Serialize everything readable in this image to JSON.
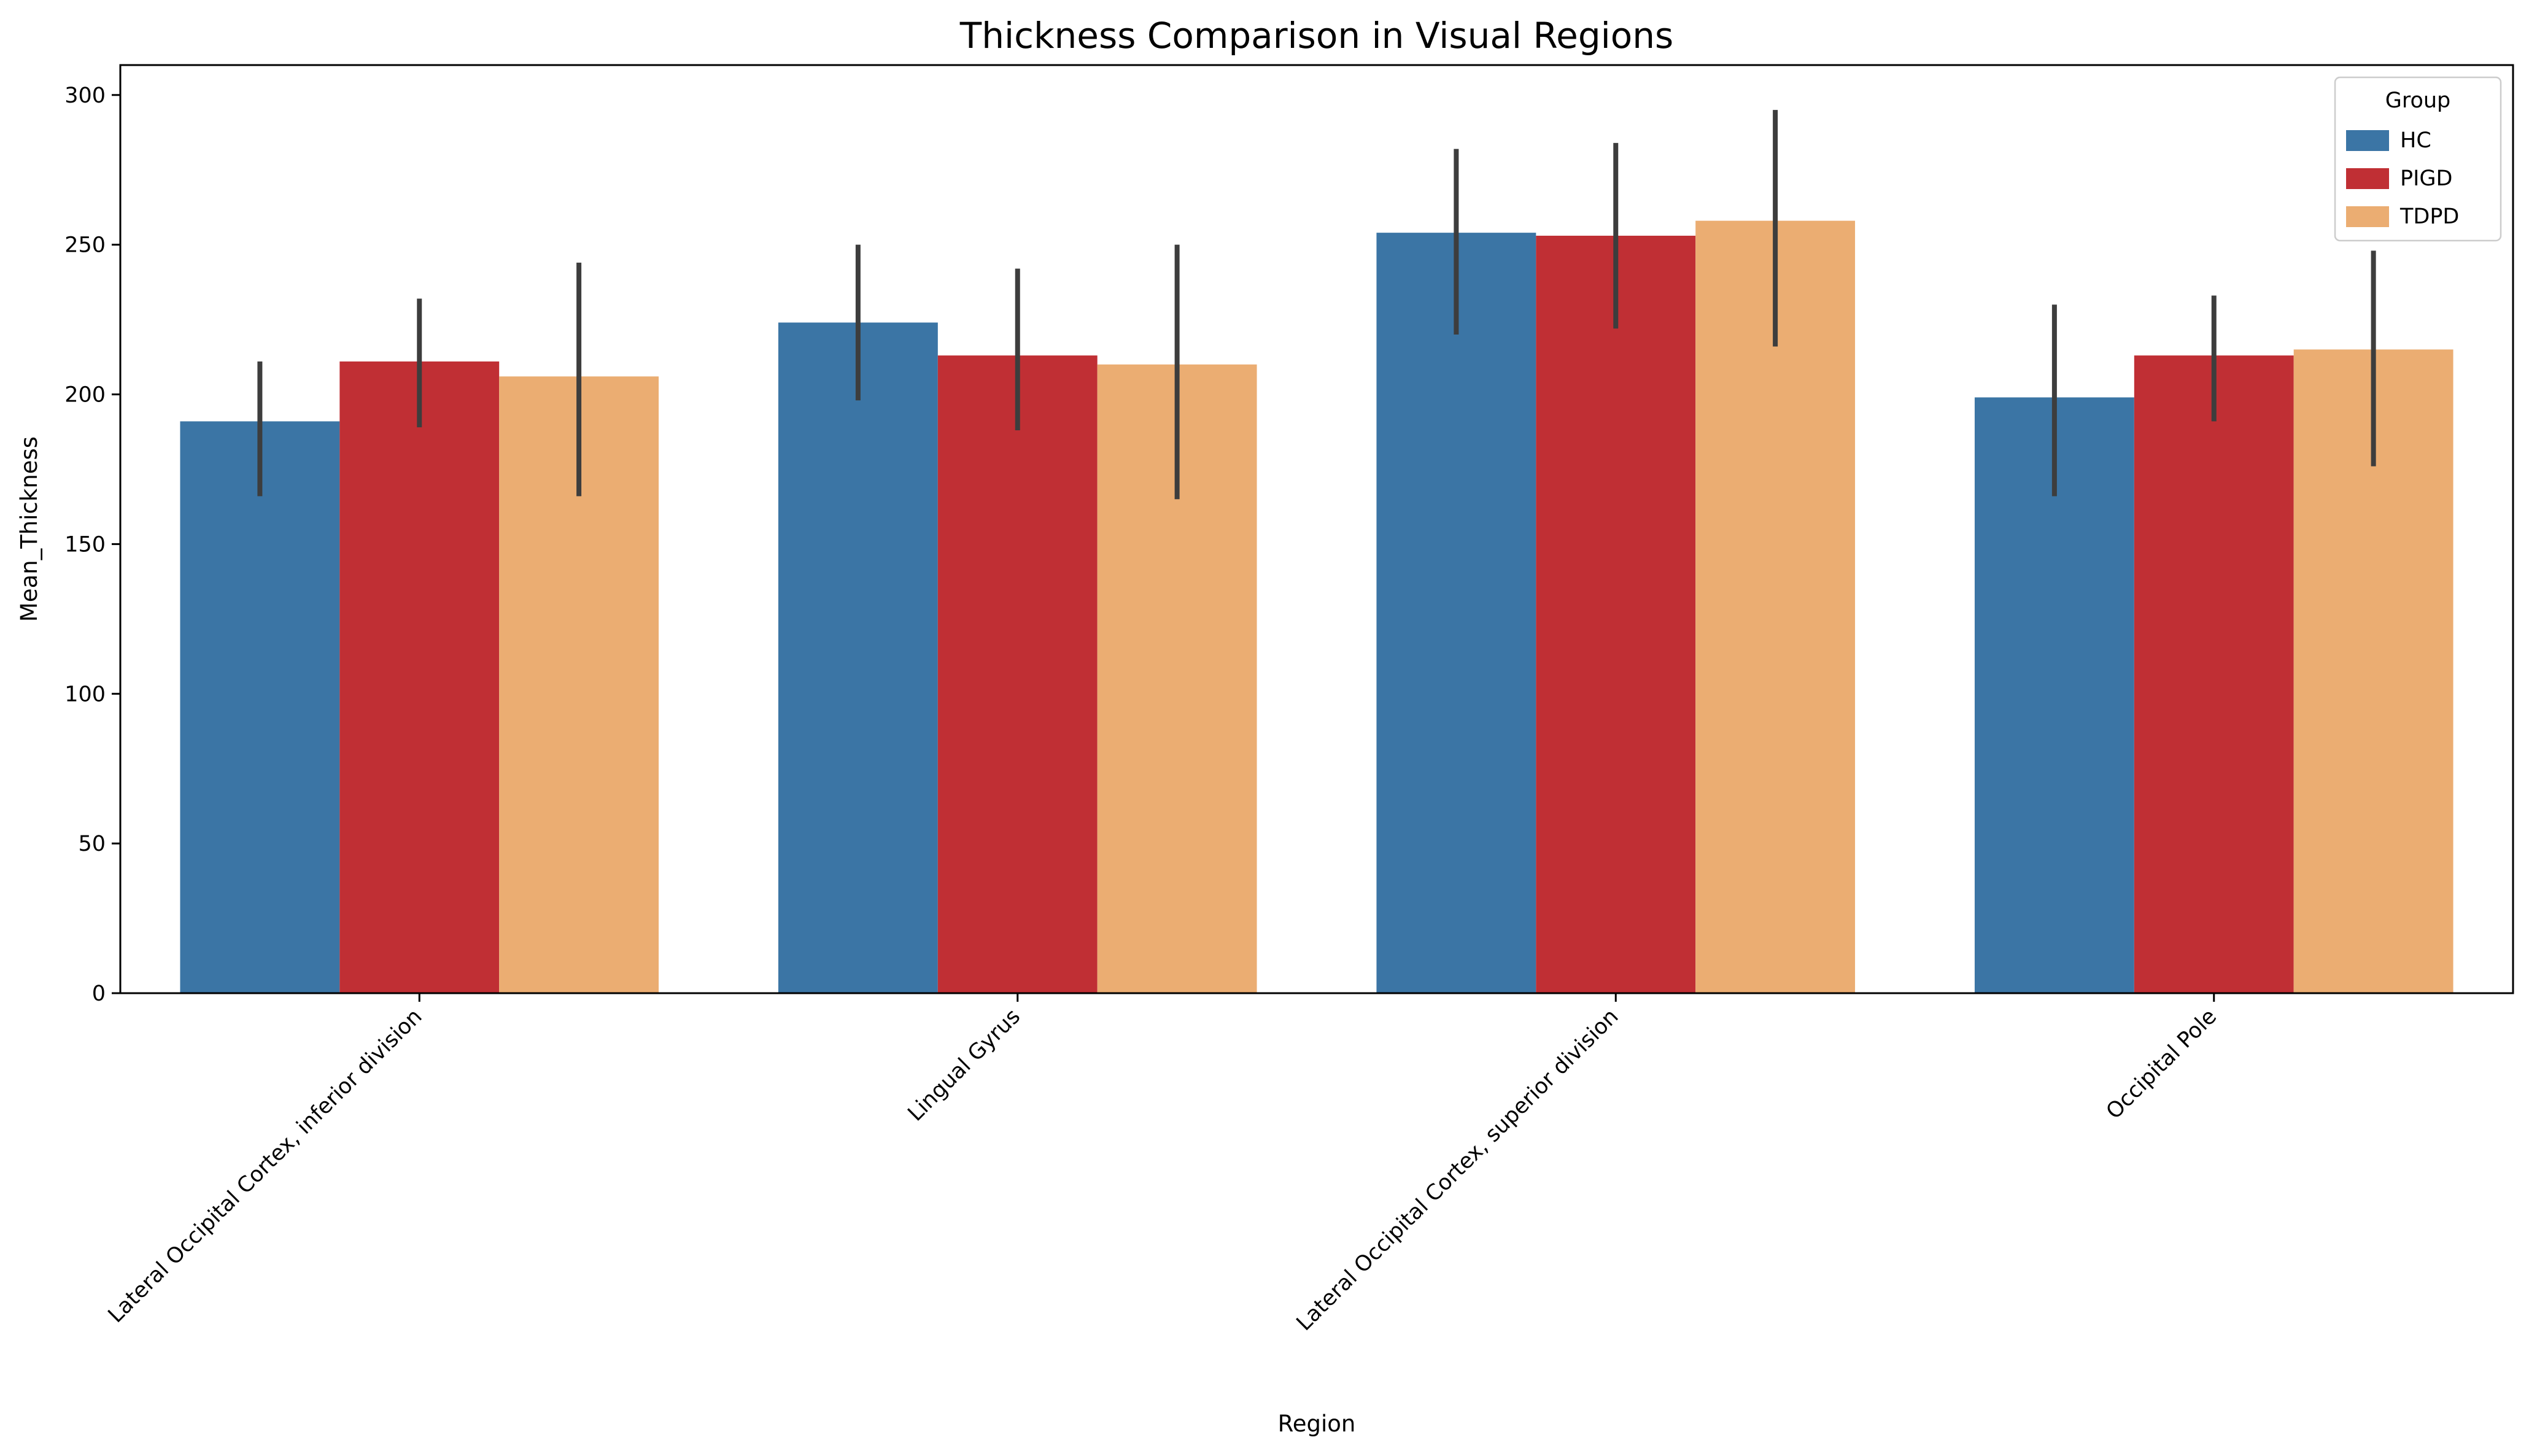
{
  "chart_data": {
    "type": "bar",
    "title": "Thickness Comparison in Visual Regions",
    "xlabel": "Region",
    "ylabel": "Mean_Thickness",
    "categories": [
      "Lateral Occipital Cortex, inferior division",
      "Lingual Gyrus",
      "Lateral Occipital Cortex, superior division",
      "Occipital Pole"
    ],
    "series": [
      {
        "name": "HC",
        "color": "#3b75a5",
        "values": [
          191,
          224,
          254,
          199
        ],
        "error_low": [
          166,
          198,
          220,
          166
        ],
        "error_high": [
          211,
          250,
          282,
          230
        ]
      },
      {
        "name": "PIGD",
        "color": "#c02f34",
        "values": [
          211,
          213,
          253,
          213
        ],
        "error_low": [
          189,
          188,
          222,
          191
        ],
        "error_high": [
          232,
          242,
          284,
          233
        ]
      },
      {
        "name": "TDPD",
        "color": "#ebad72",
        "values": [
          206,
          210,
          258,
          215
        ],
        "error_low": [
          166,
          165,
          216,
          176
        ],
        "error_high": [
          244,
          250,
          295,
          248
        ]
      }
    ],
    "ylim": [
      0,
      310
    ],
    "yticks": [
      0,
      50,
      100,
      150,
      200,
      250,
      300
    ],
    "grid": false,
    "legend": {
      "title": "Group",
      "placement": "top-right"
    },
    "errorbar_color": "#3d3d3d"
  }
}
